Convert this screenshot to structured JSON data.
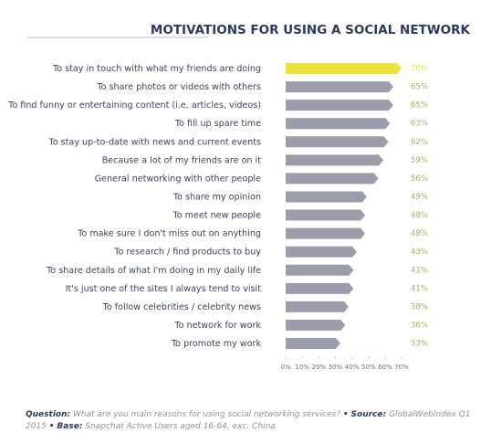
{
  "chart_data": {
    "type": "bar",
    "orientation": "horizontal",
    "title": "MOTIVATIONS FOR USING A SOCIAL NETWORK",
    "categories": [
      "To stay in touch with what my friends are doing",
      "To share photos or videos with others",
      "To find funny or entertaining content (i.e. articles, videos)",
      "To fill up spare time",
      "To stay up-to-date with news and current events",
      "Because a lot of my friends are on it",
      "General networking with other people",
      "To share my opinion",
      "To meet new people",
      "To make sure I don't miss out on anything",
      "To research / find products to buy",
      "To share details of what I'm doing in my daily life",
      "It's just one of the sites I always tend to visit",
      "To follow celebrities / celebrity news",
      "To network for work",
      "To promote my work"
    ],
    "values": [
      70,
      65,
      65,
      63,
      62,
      59,
      56,
      49,
      48,
      48,
      43,
      41,
      41,
      38,
      36,
      33
    ],
    "value_labels": [
      "70%",
      "65%",
      "65%",
      "63%",
      "62%",
      "59%",
      "56%",
      "49%",
      "48%",
      "48%",
      "43%",
      "41%",
      "41%",
      "38%",
      "36%",
      "33%"
    ],
    "colors": [
      "#ebe23a",
      "#9b9daa",
      "#9b9daa",
      "#9b9daa",
      "#9b9daa",
      "#9b9daa",
      "#9b9daa",
      "#9b9daa",
      "#9b9daa",
      "#9b9daa",
      "#9b9daa",
      "#9b9daa",
      "#9b9daa",
      "#9b9daa",
      "#9b9daa",
      "#9b9daa"
    ],
    "xlim": [
      0,
      70
    ],
    "xticks": [
      {
        "value": 0,
        "label": "0%"
      },
      {
        "value": 10,
        "label": "10%"
      },
      {
        "value": 20,
        "label": "20%"
      },
      {
        "value": 30,
        "label": "30%"
      },
      {
        "value": 40,
        "label": "40%"
      },
      {
        "value": 50,
        "label": "50%"
      },
      {
        "value": 60,
        "label": "60%"
      },
      {
        "value": 70,
        "label": "70%"
      }
    ],
    "footnote": {
      "separator": "•",
      "parts": [
        {
          "label": "Question:",
          "text": "What are you main reasons for using social networking services?"
        },
        {
          "label": "Source:",
          "text": "GlobalWebIndex Q1 2015"
        },
        {
          "label": "Base:",
          "text": "Snapchat Active Users aged 16-64, exc. China"
        }
      ]
    }
  }
}
